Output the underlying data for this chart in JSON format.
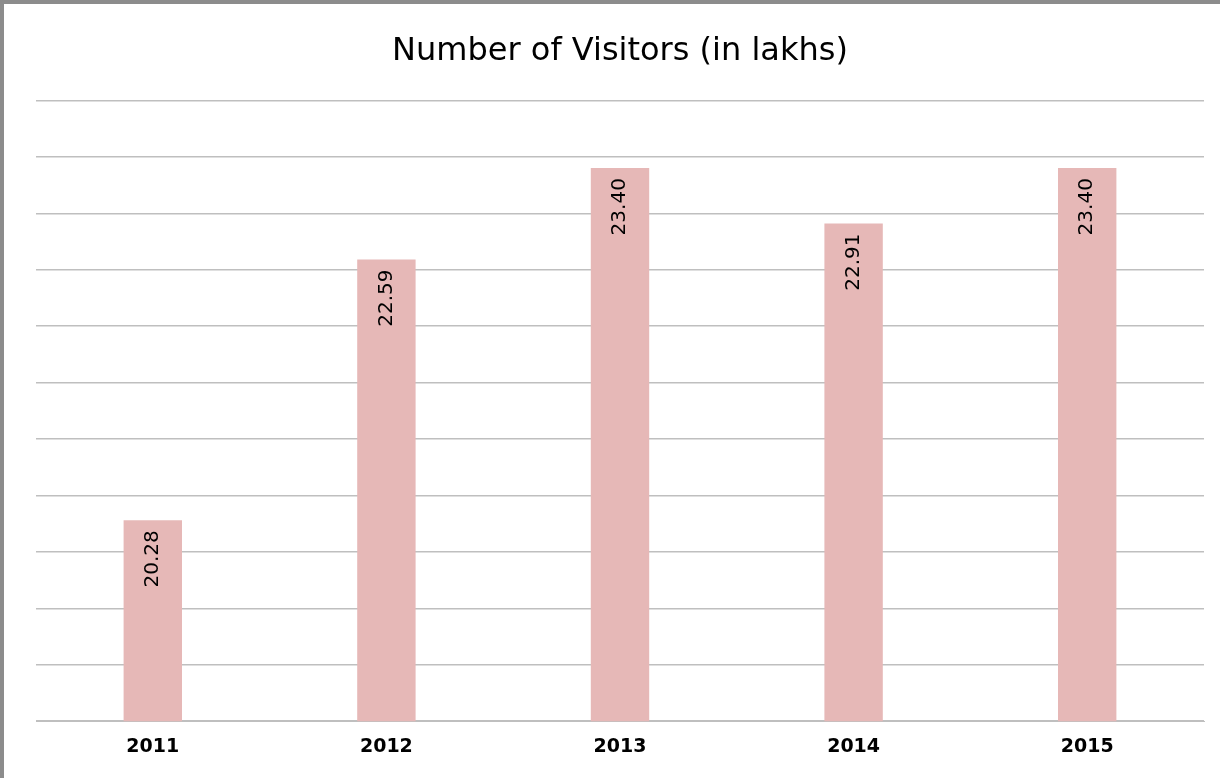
{
  "chart_data": {
    "type": "bar",
    "title": "Number of Visitors (in lakhs)",
    "categories": [
      "2011",
      "2012",
      "2013",
      "2014",
      "2015"
    ],
    "values": [
      20.28,
      22.59,
      23.4,
      22.91,
      23.4
    ],
    "color": "#e6b8b7",
    "ylim": [
      18.5,
      24
    ],
    "yticks": [
      {
        "value": 18.5,
        "label": null
      },
      {
        "value": 19,
        "label": null
      },
      {
        "value": 19.5,
        "label": null
      },
      {
        "value": 20,
        "label": null
      },
      {
        "value": 20.5,
        "label": null
      },
      {
        "value": 21,
        "label": null
      },
      {
        "value": 21.5,
        "label": null
      },
      {
        "value": 22,
        "label": null
      },
      {
        "value": 22.5,
        "label": null
      },
      {
        "value": 23,
        "label": null
      },
      {
        "value": 23.5,
        "label": null
      },
      {
        "value": 24,
        "label": null
      }
    ],
    "value_labels": [
      "20.28",
      "22.59",
      "23.40",
      "22.91",
      "23.40"
    ],
    "tick_labels": "x",
    "grid": "y",
    "legend": false
  }
}
